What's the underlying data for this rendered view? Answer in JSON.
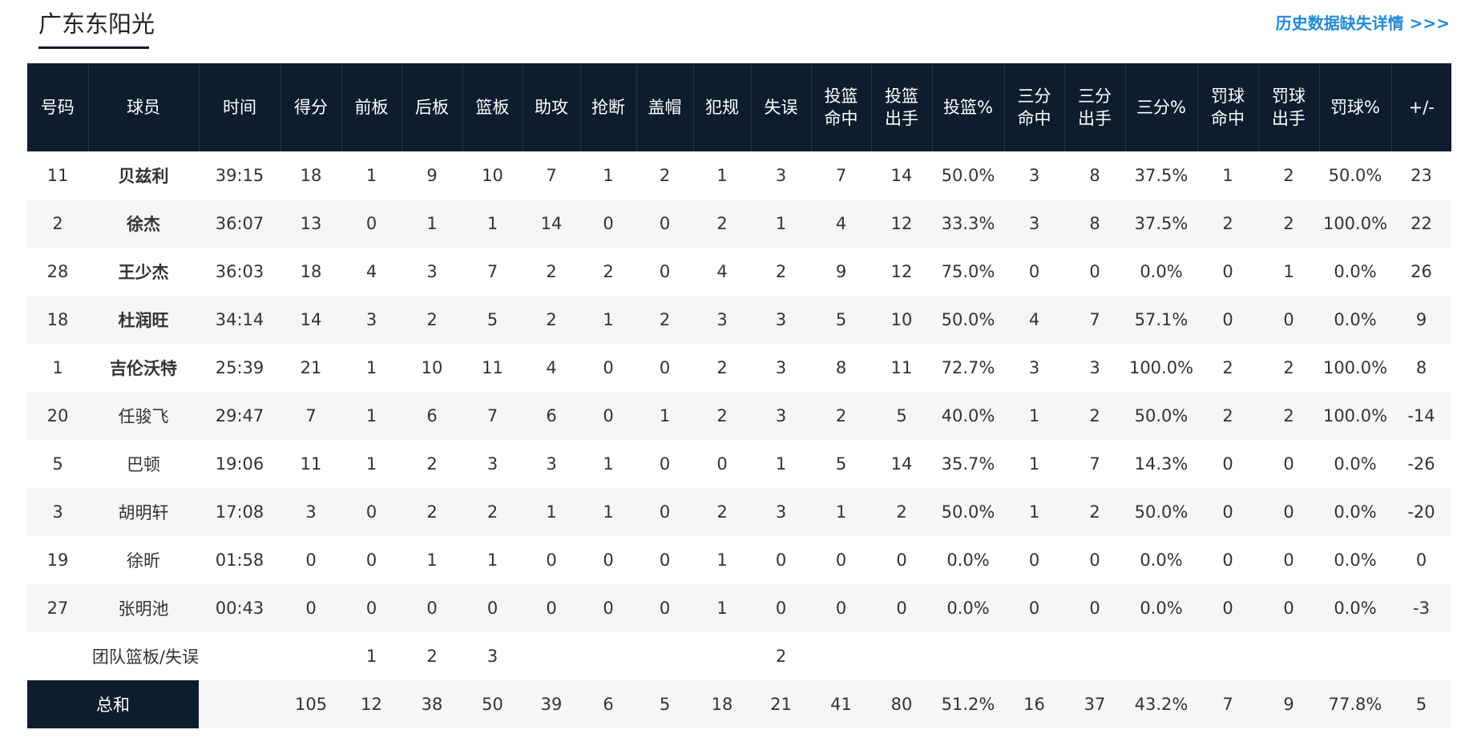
{
  "header": {
    "team_name": "广东东阳光",
    "more_link": "历史数据缺失详情 >>>"
  },
  "columns": {
    "number": "号码",
    "player": "球员",
    "time": "时间",
    "points": "得分",
    "oreb": "前板",
    "dreb": "后板",
    "reb": "篮板",
    "ast": "助攻",
    "stl": "抢断",
    "blk": "盖帽",
    "pf": "犯规",
    "tov": "失误",
    "fgm_1": "投篮",
    "fgm_2": "命中",
    "fga_1": "投篮",
    "fga_2": "出手",
    "fg_pct": "投篮%",
    "tpm_1": "三分",
    "tpm_2": "命中",
    "tpa_1": "三分",
    "tpa_2": "出手",
    "tp_pct": "三分%",
    "ftm_1": "罚球",
    "ftm_2": "命中",
    "fta_1": "罚球",
    "fta_2": "出手",
    "ft_pct": "罚球%",
    "plus_minus": "+/-"
  },
  "players": [
    {
      "number": "11",
      "name": "贝兹利",
      "starter": true,
      "time": "39:15",
      "pts": "18",
      "oreb": "1",
      "dreb": "9",
      "reb": "10",
      "ast": "7",
      "stl": "1",
      "blk": "2",
      "pf": "1",
      "tov": "3",
      "fgm": "7",
      "fga": "14",
      "fg_pct": "50.0%",
      "tpm": "3",
      "tpa": "8",
      "tp_pct": "37.5%",
      "ftm": "1",
      "fta": "2",
      "ft_pct": "50.0%",
      "pm": "23"
    },
    {
      "number": "2",
      "name": "徐杰",
      "starter": true,
      "time": "36:07",
      "pts": "13",
      "oreb": "0",
      "dreb": "1",
      "reb": "1",
      "ast": "14",
      "stl": "0",
      "blk": "0",
      "pf": "2",
      "tov": "1",
      "fgm": "4",
      "fga": "12",
      "fg_pct": "33.3%",
      "tpm": "3",
      "tpa": "8",
      "tp_pct": "37.5%",
      "ftm": "2",
      "fta": "2",
      "ft_pct": "100.0%",
      "pm": "22"
    },
    {
      "number": "28",
      "name": "王少杰",
      "starter": true,
      "time": "36:03",
      "pts": "18",
      "oreb": "4",
      "dreb": "3",
      "reb": "7",
      "ast": "2",
      "stl": "2",
      "blk": "0",
      "pf": "4",
      "tov": "2",
      "fgm": "9",
      "fga": "12",
      "fg_pct": "75.0%",
      "tpm": "0",
      "tpa": "0",
      "tp_pct": "0.0%",
      "ftm": "0",
      "fta": "1",
      "ft_pct": "0.0%",
      "pm": "26"
    },
    {
      "number": "18",
      "name": "杜润旺",
      "starter": true,
      "time": "34:14",
      "pts": "14",
      "oreb": "3",
      "dreb": "2",
      "reb": "5",
      "ast": "2",
      "stl": "1",
      "blk": "2",
      "pf": "3",
      "tov": "3",
      "fgm": "5",
      "fga": "10",
      "fg_pct": "50.0%",
      "tpm": "4",
      "tpa": "7",
      "tp_pct": "57.1%",
      "ftm": "0",
      "fta": "0",
      "ft_pct": "0.0%",
      "pm": "9"
    },
    {
      "number": "1",
      "name": "吉伦沃特",
      "starter": true,
      "time": "25:39",
      "pts": "21",
      "oreb": "1",
      "dreb": "10",
      "reb": "11",
      "ast": "4",
      "stl": "0",
      "blk": "0",
      "pf": "2",
      "tov": "3",
      "fgm": "8",
      "fga": "11",
      "fg_pct": "72.7%",
      "tpm": "3",
      "tpa": "3",
      "tp_pct": "100.0%",
      "ftm": "2",
      "fta": "2",
      "ft_pct": "100.0%",
      "pm": "8"
    },
    {
      "number": "20",
      "name": "任骏飞",
      "starter": false,
      "time": "29:47",
      "pts": "7",
      "oreb": "1",
      "dreb": "6",
      "reb": "7",
      "ast": "6",
      "stl": "0",
      "blk": "1",
      "pf": "2",
      "tov": "3",
      "fgm": "2",
      "fga": "5",
      "fg_pct": "40.0%",
      "tpm": "1",
      "tpa": "2",
      "tp_pct": "50.0%",
      "ftm": "2",
      "fta": "2",
      "ft_pct": "100.0%",
      "pm": "-14"
    },
    {
      "number": "5",
      "name": "巴顿",
      "starter": false,
      "time": "19:06",
      "pts": "11",
      "oreb": "1",
      "dreb": "2",
      "reb": "3",
      "ast": "3",
      "stl": "1",
      "blk": "0",
      "pf": "0",
      "tov": "1",
      "fgm": "5",
      "fga": "14",
      "fg_pct": "35.7%",
      "tpm": "1",
      "tpa": "7",
      "tp_pct": "14.3%",
      "ftm": "0",
      "fta": "0",
      "ft_pct": "0.0%",
      "pm": "-26"
    },
    {
      "number": "3",
      "name": "胡明轩",
      "starter": false,
      "time": "17:08",
      "pts": "3",
      "oreb": "0",
      "dreb": "2",
      "reb": "2",
      "ast": "1",
      "stl": "1",
      "blk": "0",
      "pf": "2",
      "tov": "3",
      "fgm": "1",
      "fga": "2",
      "fg_pct": "50.0%",
      "tpm": "1",
      "tpa": "2",
      "tp_pct": "50.0%",
      "ftm": "0",
      "fta": "0",
      "ft_pct": "0.0%",
      "pm": "-20"
    },
    {
      "number": "19",
      "name": "徐昕",
      "starter": false,
      "time": "01:58",
      "pts": "0",
      "oreb": "0",
      "dreb": "1",
      "reb": "1",
      "ast": "0",
      "stl": "0",
      "blk": "0",
      "pf": "1",
      "tov": "0",
      "fgm": "0",
      "fga": "0",
      "fg_pct": "0.0%",
      "tpm": "0",
      "tpa": "0",
      "tp_pct": "0.0%",
      "ftm": "0",
      "fta": "0",
      "ft_pct": "0.0%",
      "pm": "0"
    },
    {
      "number": "27",
      "name": "张明池",
      "starter": false,
      "time": "00:43",
      "pts": "0",
      "oreb": "0",
      "dreb": "0",
      "reb": "0",
      "ast": "0",
      "stl": "0",
      "blk": "0",
      "pf": "1",
      "tov": "0",
      "fgm": "0",
      "fga": "0",
      "fg_pct": "0.0%",
      "tpm": "0",
      "tpa": "0",
      "tp_pct": "0.0%",
      "ftm": "0",
      "fta": "0",
      "ft_pct": "0.0%",
      "pm": "-3"
    }
  ],
  "team_row": {
    "label": "团队篮板/失误",
    "oreb": "1",
    "dreb": "2",
    "reb": "3",
    "tov": "2"
  },
  "totals": {
    "label": "总和",
    "pts": "105",
    "oreb": "12",
    "dreb": "38",
    "reb": "50",
    "ast": "39",
    "stl": "6",
    "blk": "5",
    "pf": "18",
    "tov": "21",
    "fgm": "41",
    "fga": "80",
    "fg_pct": "51.2%",
    "tpm": "16",
    "tpa": "37",
    "tp_pct": "43.2%",
    "ftm": "7",
    "fta": "9",
    "ft_pct": "77.8%",
    "pm": "5"
  }
}
